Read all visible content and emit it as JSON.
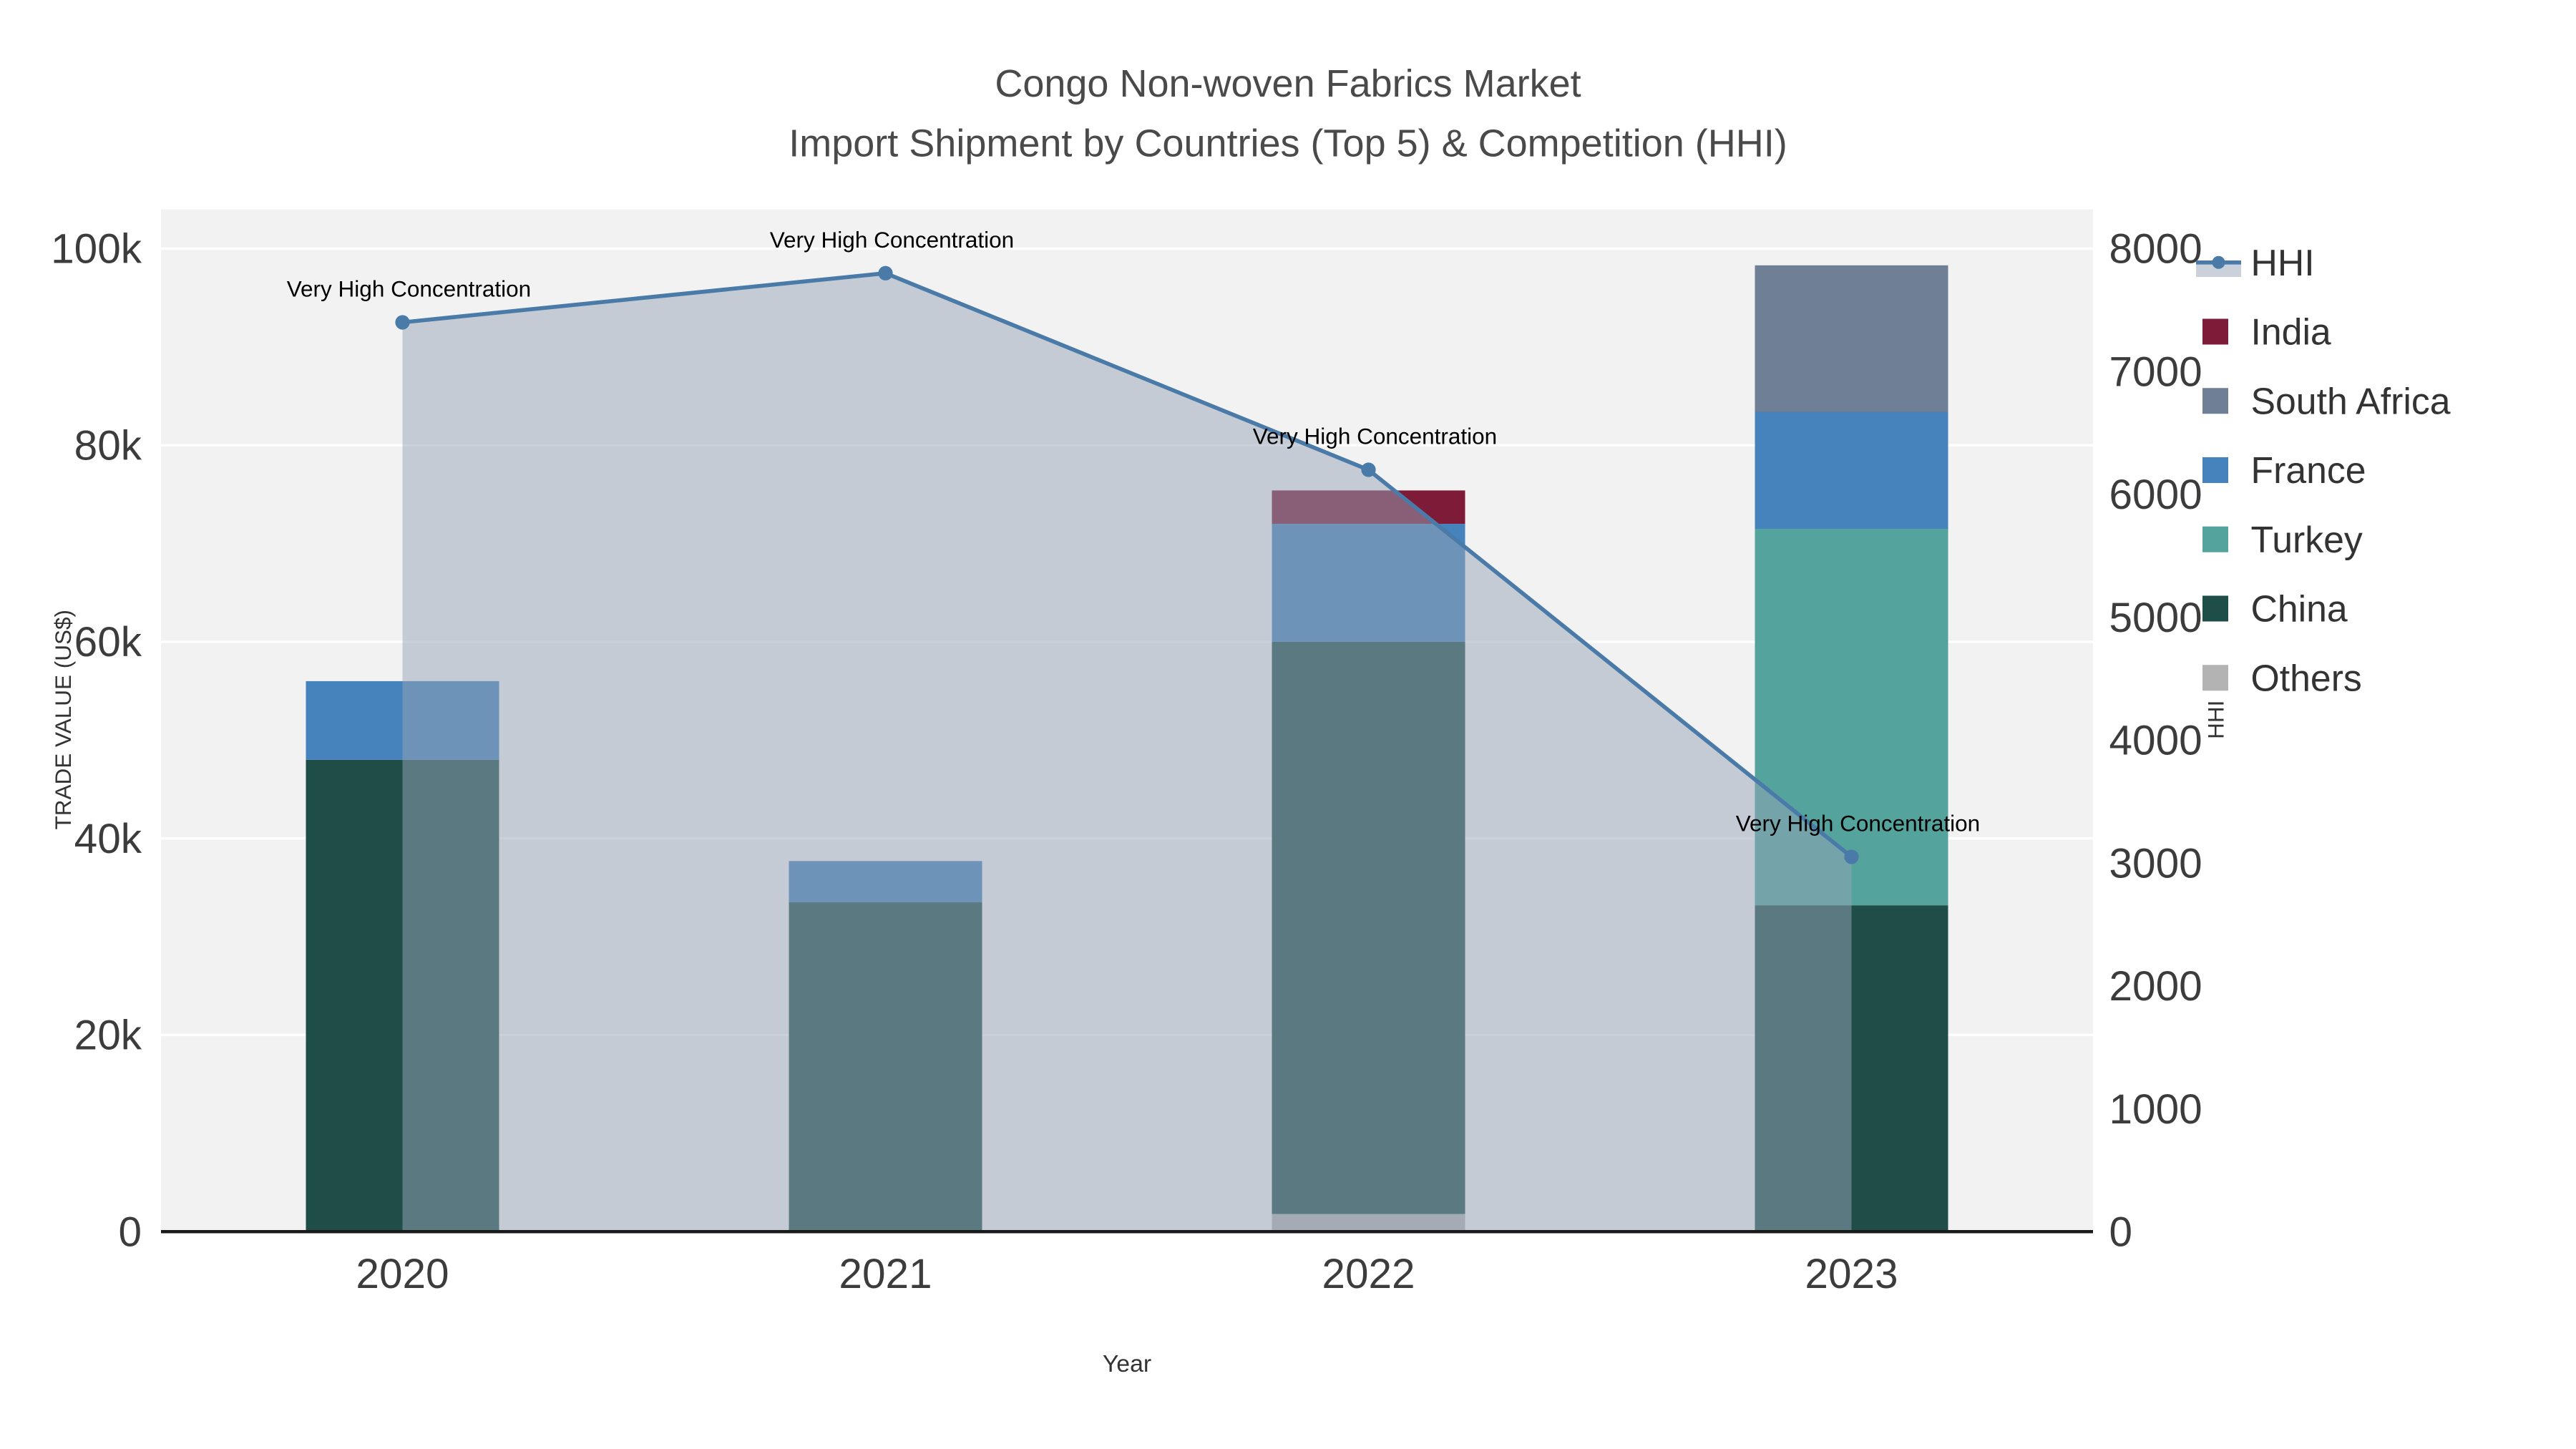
{
  "figure": {
    "title_line1": "Congo Non-woven Fabrics Market",
    "title_line2": "Import Shipment by Countries (Top 5) & Competition (HHI)"
  },
  "chart_data": {
    "type": "bar",
    "variant": "stacked-bars-with-line-overlay-dual-axis",
    "title": "Congo Non-woven Fabrics Market\nImport Shipment by Countries (Top 5) & Competition (HHI)",
    "categories": [
      "2020",
      "2021",
      "2022",
      "2023"
    ],
    "xlabel": "Year",
    "y_left": {
      "label": "TRADE VALUE (US$)",
      "tick_labels": [
        "0",
        "20k",
        "40k",
        "60k",
        "80k",
        "100k"
      ],
      "tick_values": [
        0,
        20000,
        40000,
        60000,
        80000,
        100000
      ],
      "max": 104000
    },
    "y_right": {
      "label": "HHI",
      "tick_labels": [
        "0",
        "1000",
        "2000",
        "3000",
        "4000",
        "5000",
        "6000",
        "7000",
        "8000"
      ],
      "tick_values": [
        0,
        1000,
        2000,
        3000,
        4000,
        5000,
        6000,
        7000,
        8000
      ],
      "max": 8320
    },
    "bar_series": [
      {
        "name": "Others",
        "color": "#b3b3b3",
        "values": [
          0,
          0,
          1800,
          0
        ]
      },
      {
        "name": "China",
        "color": "#1f4e49",
        "values": [
          48000,
          33500,
          58200,
          33200
        ]
      },
      {
        "name": "Turkey",
        "color": "#55a39d",
        "values": [
          0,
          0,
          0,
          38300
        ]
      },
      {
        "name": "France",
        "color": "#4682bb",
        "values": [
          8000,
          4200,
          12000,
          11900
        ]
      },
      {
        "name": "South Africa",
        "color": "#6e7f96",
        "values": [
          0,
          0,
          0,
          14900
        ]
      },
      {
        "name": "India",
        "color": "#7d1b38",
        "values": [
          0,
          0,
          3400,
          0
        ]
      }
    ],
    "line_series": {
      "name": "HHI",
      "color": "#4a7ba8",
      "area_fill": "rgba(150,163,184,0.5)",
      "values": [
        7400,
        7800,
        6200,
        3050
      ]
    },
    "annotations": [
      {
        "category": "2020",
        "text": "Very High Concentration"
      },
      {
        "category": "2021",
        "text": "Very High Concentration"
      },
      {
        "category": "2022",
        "text": "Very High Concentration"
      },
      {
        "category": "2023",
        "text": "Very High Concentration"
      }
    ],
    "legend": {
      "position": "top-right",
      "items": [
        "HHI",
        "India",
        "South Africa",
        "France",
        "Turkey",
        "China",
        "Others"
      ]
    },
    "colors": {
      "plot_bg": "#f2f2f2",
      "grid": "#ffffff",
      "axis_text": "#3c3c3c",
      "title_text": "#4a4a4a",
      "spine": "#1a1a1a"
    }
  }
}
